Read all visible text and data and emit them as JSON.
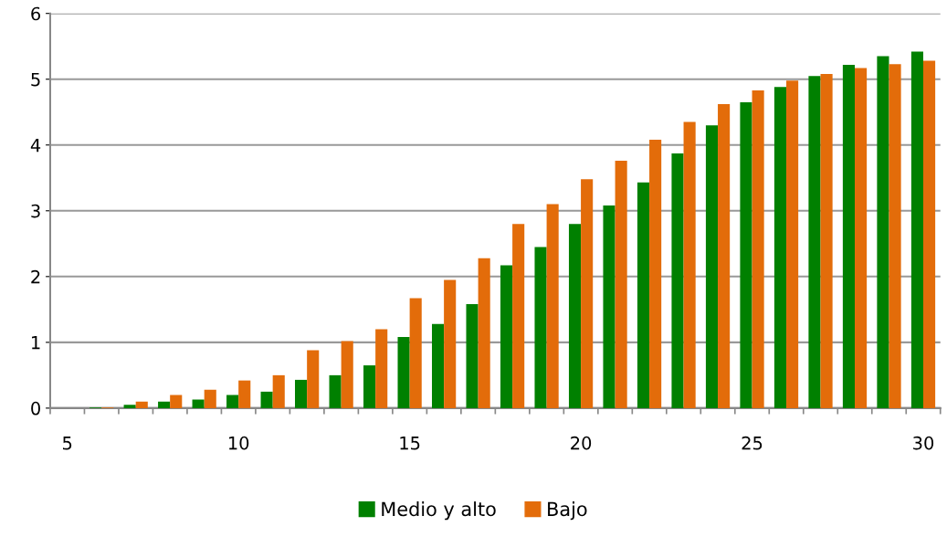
{
  "chart_data": {
    "type": "bar",
    "categories": [
      "5",
      null,
      null,
      null,
      null,
      "10",
      null,
      null,
      null,
      null,
      "15",
      null,
      null,
      null,
      null,
      "20",
      null,
      null,
      null,
      null,
      "25",
      null,
      null,
      null,
      null,
      "30"
    ],
    "series": [
      {
        "name": "Medio y alto",
        "color": "#008000",
        "values": [
          0,
          0.01,
          0.05,
          0.1,
          0.13,
          0.2,
          0.25,
          0.43,
          0.5,
          0.65,
          1.08,
          1.28,
          1.58,
          2.17,
          2.45,
          2.8,
          3.08,
          3.43,
          3.87,
          4.3,
          4.65,
          4.88,
          5.05,
          5.22,
          5.35,
          5.42
        ]
      },
      {
        "name": "Bajo",
        "color": "#e36c0a",
        "values": [
          0,
          0.01,
          0.1,
          0.2,
          0.28,
          0.42,
          0.5,
          0.88,
          1.02,
          1.2,
          1.67,
          1.95,
          2.28,
          2.8,
          3.1,
          3.48,
          3.76,
          4.08,
          4.35,
          4.62,
          4.83,
          4.98,
          5.08,
          5.17,
          5.23,
          5.28
        ]
      }
    ],
    "ylim": [
      0,
      6
    ],
    "yticks": [
      0,
      1,
      2,
      3,
      4,
      5,
      6
    ],
    "grid": "y",
    "legend": "bottom"
  }
}
